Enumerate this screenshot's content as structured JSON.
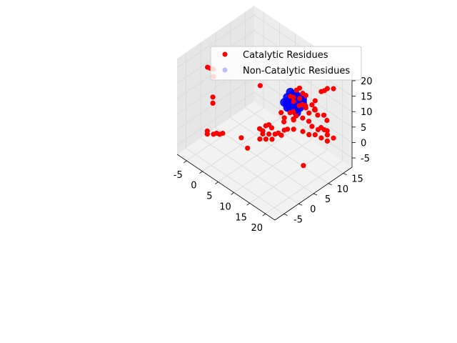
{
  "chart_data": {
    "type": "scatter",
    "projection": "3d",
    "grid": true,
    "legend_placement": "upper-right",
    "colors": {
      "catalytic": "#ff0000",
      "non_catalytic": "#0000ff",
      "pane": "#f2f2f2",
      "grid": "#d9d9d9"
    },
    "axes": {
      "x": {
        "label": "",
        "range": [
          -8,
          23
        ],
        "ticks": [
          -5,
          0,
          5,
          10,
          15,
          20
        ]
      },
      "y": {
        "label": "",
        "range": [
          -8,
          18
        ],
        "ticks": [
          -5,
          0,
          5,
          10,
          15
        ]
      },
      "z": {
        "label": "",
        "range": [
          -8,
          23
        ],
        "ticks": [
          -5,
          0,
          5,
          10,
          15,
          20
        ]
      }
    },
    "series": [
      {
        "name": "Catalytic Residues",
        "color": "#ff0000",
        "alpha": 1.0,
        "points": [
          [
            -4,
            -2,
            19
          ],
          [
            -4,
            -1,
            18
          ],
          [
            -4,
            0,
            17
          ],
          [
            -3,
            -1,
            16
          ],
          [
            -7,
            3,
            4
          ],
          [
            -7,
            3,
            2
          ],
          [
            -5,
            -1,
            -3
          ],
          [
            -5,
            -1,
            -4
          ],
          [
            -4,
            0,
            -4
          ],
          [
            -3,
            0,
            -3
          ],
          [
            -3,
            1,
            -4
          ],
          [
            -2,
            1,
            -3
          ],
          [
            2,
            3,
            -3
          ],
          [
            4,
            3,
            -5
          ],
          [
            5,
            6,
            0
          ],
          [
            6,
            6,
            0
          ],
          [
            6,
            6,
            -1
          ],
          [
            7,
            7,
            -1
          ],
          [
            6,
            5,
            -2
          ],
          [
            7,
            6,
            -2
          ],
          [
            8,
            7,
            -2
          ],
          [
            6,
            7,
            1
          ],
          [
            7,
            7,
            2
          ],
          [
            9,
            8,
            0
          ],
          [
            10,
            9,
            1
          ],
          [
            11,
            9,
            2
          ],
          [
            12,
            10,
            2
          ],
          [
            10,
            8,
            0
          ],
          [
            8,
            8,
            -1
          ],
          [
            9,
            12,
            4
          ],
          [
            10,
            12,
            5
          ],
          [
            10,
            13,
            3
          ],
          [
            8,
            3,
            18
          ],
          [
            12,
            11,
            14
          ],
          [
            13,
            12,
            13
          ],
          [
            14,
            12,
            13
          ],
          [
            13,
            11,
            12
          ],
          [
            12,
            12,
            14
          ],
          [
            11,
            10,
            12
          ],
          [
            11,
            11,
            11
          ],
          [
            12,
            10,
            11
          ],
          [
            9,
            9,
            6
          ],
          [
            10,
            9,
            5
          ],
          [
            11,
            11,
            4
          ],
          [
            12,
            10,
            5
          ],
          [
            13,
            12,
            5
          ],
          [
            14,
            13,
            4
          ],
          [
            15,
            13,
            3
          ],
          [
            16,
            14,
            2
          ],
          [
            17,
            15,
            2
          ],
          [
            18,
            15,
            1
          ],
          [
            19,
            16,
            0
          ],
          [
            16,
            13,
            1
          ],
          [
            17,
            14,
            0
          ],
          [
            18,
            15,
            -1
          ],
          [
            16,
            15,
            2
          ],
          [
            17,
            16,
            1
          ],
          [
            15,
            12,
            8
          ],
          [
            16,
            13,
            9
          ],
          [
            15,
            13,
            10
          ],
          [
            14,
            12,
            9
          ],
          [
            15,
            14,
            8
          ],
          [
            17,
            14,
            15
          ],
          [
            18,
            15,
            16
          ],
          [
            19,
            16,
            16
          ],
          [
            18,
            14,
            16
          ],
          [
            16,
            13,
            12
          ],
          [
            12,
            13,
            8
          ],
          [
            11,
            13,
            7
          ],
          [
            12,
            14,
            7
          ],
          [
            13,
            16,
            5
          ],
          [
            14,
            16,
            4
          ],
          [
            15,
            17,
            4
          ],
          [
            16,
            17,
            3
          ],
          [
            14,
            11,
            2
          ],
          [
            15,
            12,
            1
          ],
          [
            6,
            9,
            -1
          ],
          [
            8,
            11,
            1
          ],
          [
            17,
            8,
            -5
          ]
        ]
      },
      {
        "name": "Non-Catalytic Residues",
        "color": "#0000ff",
        "alpha": 0.25,
        "points": [
          [
            11,
            10,
            10
          ],
          [
            12,
            10,
            10
          ],
          [
            11,
            11,
            10
          ],
          [
            12,
            11,
            10
          ],
          [
            10,
            10,
            9
          ],
          [
            13,
            11,
            9
          ],
          [
            11,
            9,
            9
          ],
          [
            12,
            12,
            9
          ],
          [
            10,
            11,
            8
          ],
          [
            13,
            10,
            8
          ],
          [
            11,
            10,
            8
          ],
          [
            12,
            11,
            8
          ],
          [
            11,
            12,
            11
          ],
          [
            12,
            9,
            11
          ],
          [
            13,
            12,
            11
          ],
          [
            10,
            9,
            10
          ],
          [
            11,
            11,
            12
          ],
          [
            12,
            10,
            12
          ],
          [
            13,
            11,
            10
          ],
          [
            10,
            12,
            10
          ],
          [
            11,
            10,
            11
          ],
          [
            12,
            12,
            11
          ],
          [
            11,
            11,
            9
          ],
          [
            12,
            10,
            9
          ],
          [
            13,
            12,
            10
          ],
          [
            10,
            10,
            11
          ],
          [
            11,
            12,
            9
          ],
          [
            12,
            9,
            10
          ],
          [
            13,
            11,
            11
          ],
          [
            10,
            11,
            12
          ]
        ]
      }
    ]
  }
}
